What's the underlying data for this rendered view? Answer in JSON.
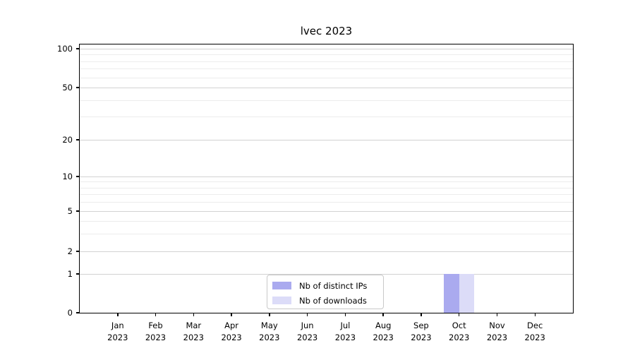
{
  "chart_data": {
    "type": "bar",
    "title": "lvec 2023",
    "categories": [
      "Jan 2023",
      "Feb 2023",
      "Mar 2023",
      "Apr 2023",
      "May 2023",
      "Jun 2023",
      "Jul 2023",
      "Aug 2023",
      "Sep 2023",
      "Oct 2023",
      "Nov 2023",
      "Dec 2023"
    ],
    "series": [
      {
        "name": "Nb of distinct IPs",
        "color": "#aaaaef",
        "values": [
          0,
          0,
          0,
          0,
          0,
          0,
          0,
          0,
          0,
          1,
          0,
          0
        ]
      },
      {
        "name": "Nb of downloads",
        "color": "#dcdcf8",
        "values": [
          0,
          0,
          0,
          0,
          0,
          0,
          0,
          0,
          0,
          1,
          0,
          0
        ]
      }
    ],
    "y_axis": {
      "scale": "symlog",
      "range": [
        0,
        100
      ],
      "major_ticks": [
        0,
        1,
        2,
        5,
        10,
        20,
        50,
        100
      ],
      "minor_gridline_values": [
        3,
        4,
        6,
        7,
        8,
        9,
        30,
        40,
        60,
        70,
        80,
        90
      ]
    },
    "x_axis": {
      "tick_label_second_line": "2023"
    },
    "grid": {
      "major_color": "#d2d2d2",
      "minor_color": "#ececec"
    },
    "legend": {
      "position": "lower-center-inside",
      "border_color": "#c9c9c9"
    },
    "frame_color": "#000000",
    "background_color": "#ffffff"
  }
}
